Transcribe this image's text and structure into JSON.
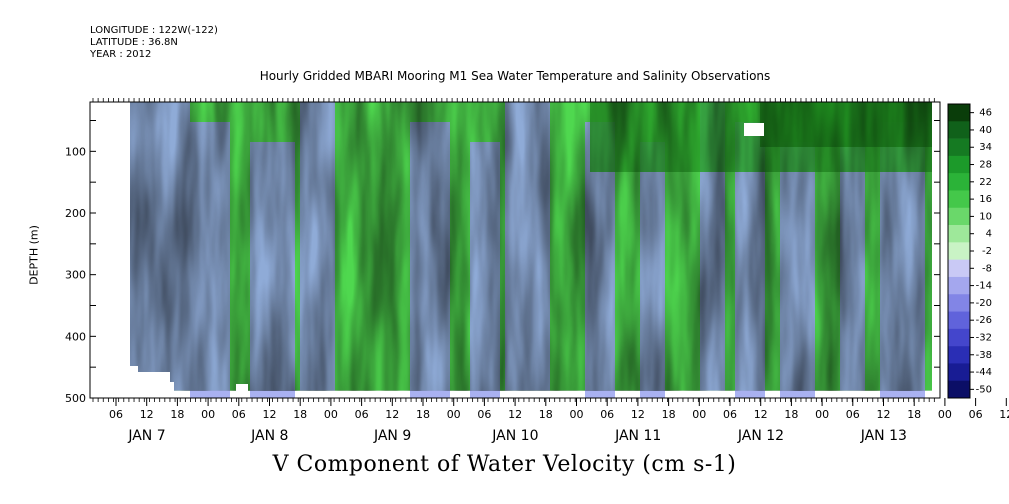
{
  "header": {
    "longitude": "LONGITUDE : 122W(-122)",
    "latitude": "LATITUDE : 36.8N",
    "year": "YEAR : 2012"
  },
  "chart_data": {
    "type": "heatmap",
    "title": "Hourly Gridded MBARI Mooring M1 Sea Water Temperature and Salinity Observations",
    "xlabel": "",
    "ylabel": "DEPTH (m)",
    "caption": "V Component of Water Velocity (cm s-1)",
    "x_tick_hours": [
      "06",
      "12",
      "18",
      "00",
      "06",
      "12",
      "18",
      "00",
      "06",
      "12",
      "18",
      "00",
      "06",
      "12",
      "18",
      "00",
      "06",
      "12",
      "18",
      "00",
      "06",
      "12",
      "18",
      "00",
      "06",
      "12",
      "18",
      "00",
      "06",
      "12",
      "18"
    ],
    "day_labels": [
      "JAN  7",
      "JAN  8",
      "JAN  9",
      "JAN 10",
      "JAN 11",
      "JAN 12",
      "JAN 13"
    ],
    "y_ticks": [
      100,
      200,
      300,
      400,
      500
    ],
    "ylim": [
      500,
      20
    ],
    "colorbar": {
      "levels": [
        -50,
        -44,
        -38,
        -32,
        -26,
        -20,
        -14,
        -8,
        -2,
        4,
        10,
        16,
        22,
        28,
        34,
        40,
        46
      ],
      "labels": [
        "46",
        "40",
        "34",
        "28",
        "22",
        "16",
        "10",
        "4",
        "-2",
        "-8",
        "-14",
        "-20",
        "-26",
        "-32",
        "-38",
        "-44",
        "-50"
      ]
    },
    "description_values": {
      "x_hours_from": 0,
      "x_hours_to": 162,
      "depth_top": 20,
      "depth_bottom": 488
    }
  },
  "colors": {
    "positive": "#4fd84f",
    "strong_positive": "#1e8a1e",
    "negative": "#9aa3ee",
    "near_zero": "#c8f5c8"
  }
}
